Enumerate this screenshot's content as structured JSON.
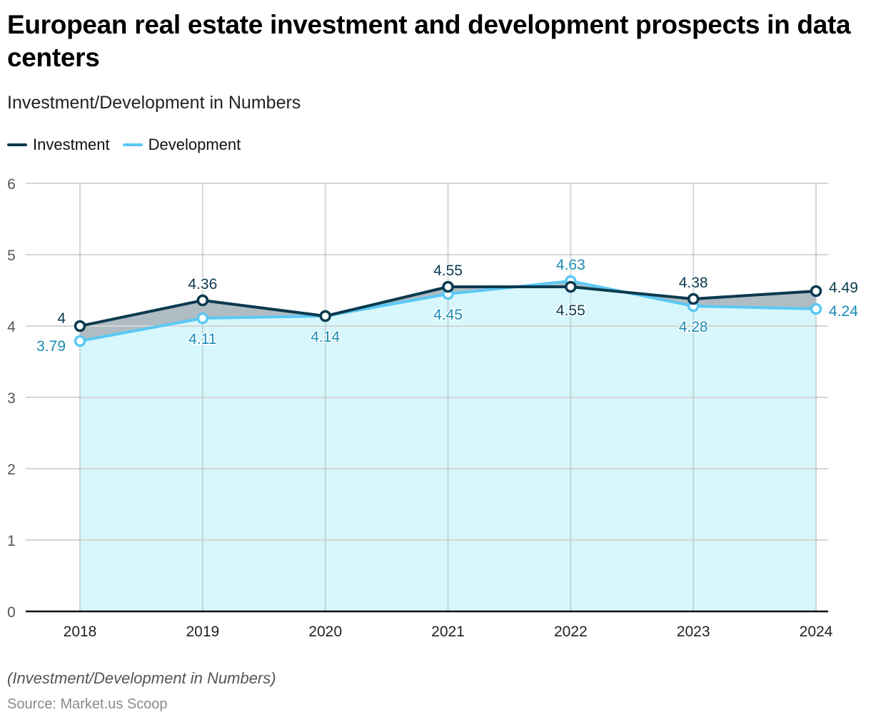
{
  "title": "European real estate investment and development prospects in data centers",
  "subtitle": "Investment/Development in Numbers",
  "legend": [
    {
      "name": "Investment",
      "color": "#0b3a4f"
    },
    {
      "name": "Development",
      "color": "#5bc8f5"
    }
  ],
  "note": "(Investment/Development in Numbers)",
  "source": "Source: Market.us Scoop",
  "chart_data": {
    "type": "line",
    "title": "European real estate investment and development prospects in data centers",
    "subtitle": "Investment/Development in Numbers",
    "xlabel": "",
    "ylabel": "",
    "x": [
      "2018",
      "2019",
      "2020",
      "2021",
      "2022",
      "2023",
      "2024"
    ],
    "series": [
      {
        "name": "Investment",
        "color": "#0b3a4f",
        "values": [
          4,
          4.36,
          4.14,
          4.55,
          4.55,
          4.38,
          4.49
        ]
      },
      {
        "name": "Development",
        "color": "#5bc8f5",
        "values": [
          3.79,
          4.11,
          4.14,
          4.45,
          4.63,
          4.28,
          4.24
        ]
      }
    ],
    "data_labels": {
      "Investment": [
        "4",
        "4.36",
        "",
        "4.55",
        "4.55",
        "4.38",
        "4.49"
      ],
      "Development": [
        "3.79",
        "4.11",
        "4.14",
        "4.45",
        "4.63",
        "4.28",
        "4.24"
      ]
    },
    "yticks": [
      0,
      1,
      2,
      3,
      4,
      5,
      6
    ],
    "ylim": [
      0,
      6
    ],
    "grid": true,
    "legend_position": "top-left",
    "fill_colors": {
      "between": "#b0bcc3",
      "under_development": "#d7f7fc"
    },
    "label_colors": {
      "Investment": "#0b3a4f",
      "Development": "#1a8bb3"
    }
  }
}
